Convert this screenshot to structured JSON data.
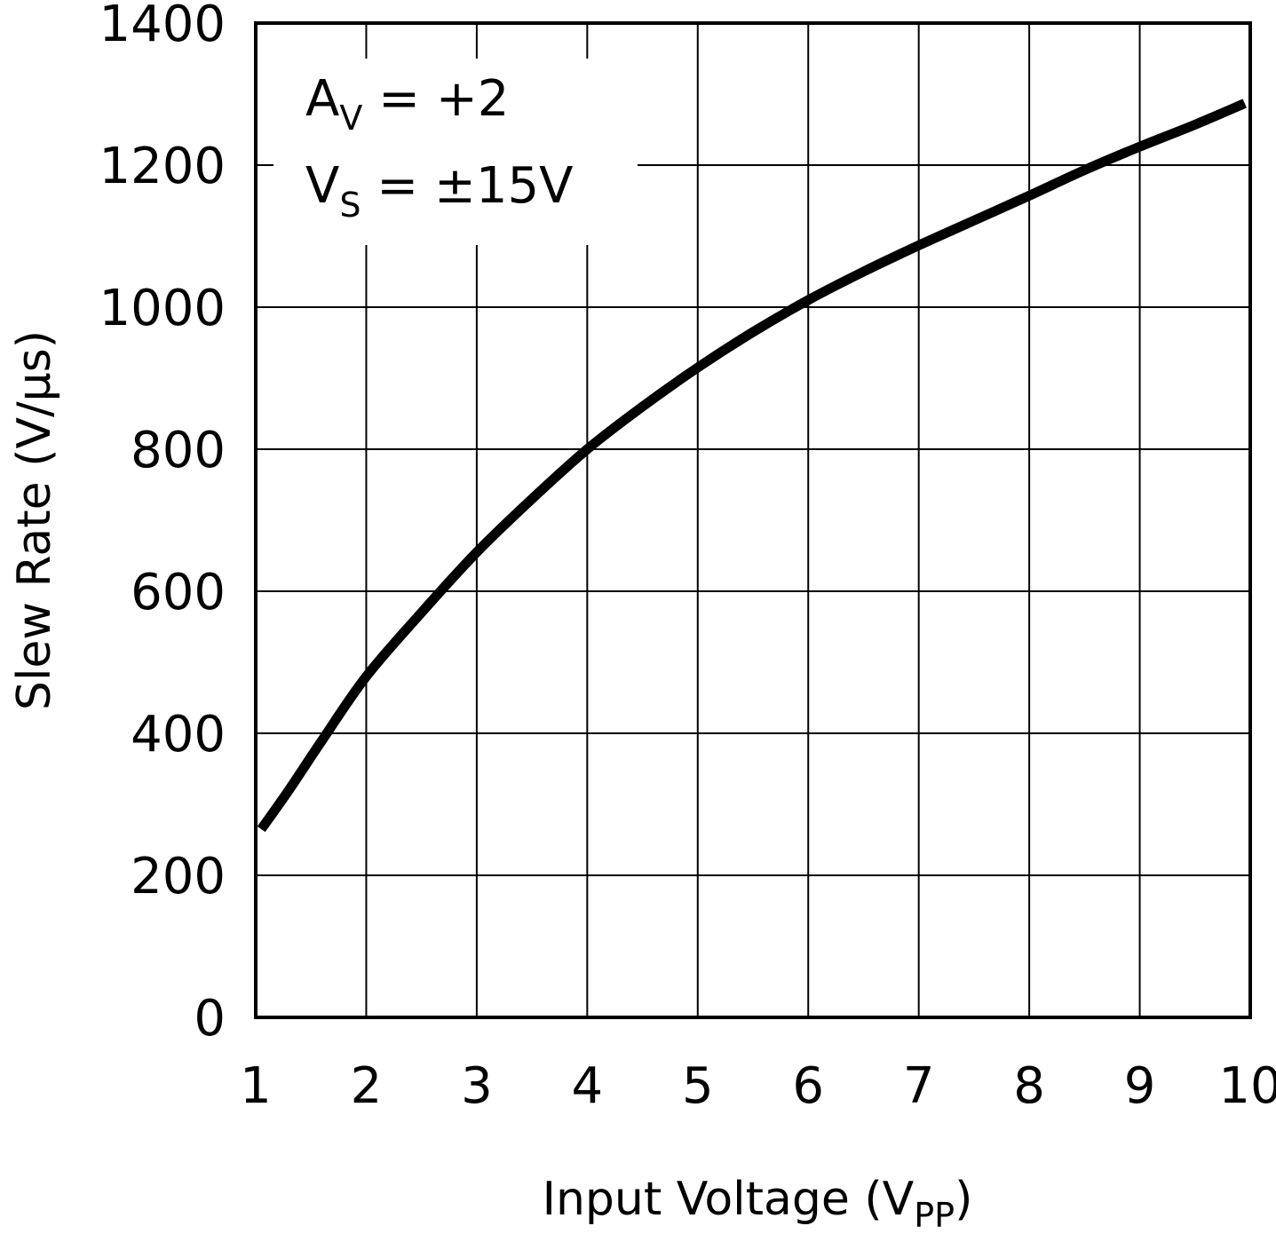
{
  "chart_data": {
    "type": "line",
    "xlabel": {
      "main": "Input Voltage (V",
      "sub": "PP",
      "close": ")"
    },
    "ylabel": "Slew Rate (V/μs)",
    "xlim": [
      1,
      10
    ],
    "ylim": [
      0,
      1400
    ],
    "x_ticks": [
      1,
      2,
      3,
      4,
      5,
      6,
      7,
      8,
      9,
      10
    ],
    "y_ticks": [
      0,
      200,
      400,
      600,
      800,
      1000,
      1200,
      1400
    ],
    "grid": true,
    "annotations": [
      {
        "main": "A",
        "sub": "V",
        "rest": " = +2"
      },
      {
        "main": "V",
        "sub": "S",
        "rest": " = ±15V"
      }
    ],
    "series": [
      {
        "color": "#000000",
        "x": [
          1.05,
          1.3,
          1.6,
          2.0,
          2.5,
          3.0,
          3.5,
          4.0,
          4.5,
          5.0,
          5.5,
          6.0,
          6.5,
          7.0,
          7.5,
          8.0,
          8.5,
          9.0,
          9.5,
          9.95
        ],
        "y": [
          265,
          320,
          390,
          480,
          570,
          655,
          730,
          800,
          860,
          915,
          965,
          1010,
          1050,
          1087,
          1122,
          1157,
          1193,
          1226,
          1257,
          1287
        ]
      }
    ]
  }
}
